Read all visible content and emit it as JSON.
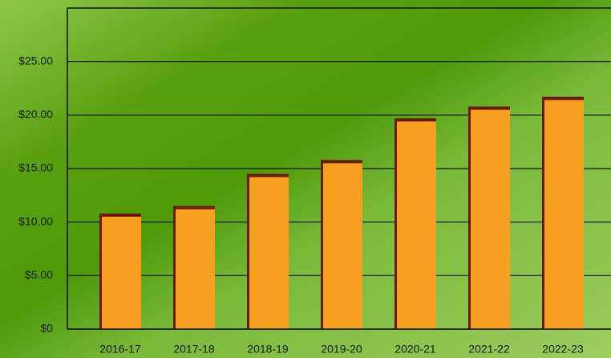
{
  "chart_data": {
    "type": "bar",
    "categories": [
      "2016-17",
      "2017-18",
      "2018-19",
      "2019-20",
      "2020-21",
      "2021-22",
      "2022-23"
    ],
    "values": [
      10.8,
      11.5,
      14.5,
      15.8,
      19.7,
      20.8,
      21.7
    ],
    "color": "#f5a020",
    "ylim": [
      0,
      30
    ],
    "yticks": [
      {
        "value": 0,
        "label": "$0"
      },
      {
        "value": 5,
        "label": "$5.00"
      },
      {
        "value": 10,
        "label": "$10.00"
      },
      {
        "value": 15,
        "label": "$15.00"
      },
      {
        "value": 20,
        "label": "$20.00"
      },
      {
        "value": 25,
        "label": "$25.00"
      }
    ],
    "grid": true
  }
}
